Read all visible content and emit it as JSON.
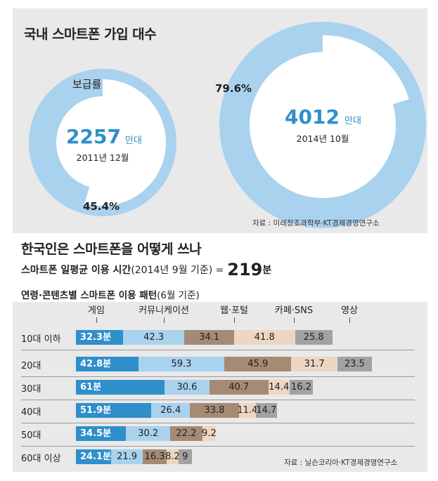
{
  "section1": {
    "title": "국내 스마트폰 가입 대수",
    "donut_small": {
      "label": "보급률",
      "number": "2257",
      "unit": "만대",
      "date": "2011년 12월",
      "pct_label": "45.4%",
      "pct": 45.4
    },
    "donut_large": {
      "number": "4012",
      "unit": "만대",
      "date": "2014년 10월",
      "pct_label": "79.6%",
      "pct": 79.6
    },
    "source": "자료 : 미래창조과학부·KT경제경영연구소"
  },
  "section2": {
    "title": "한국인은 스마트폰을 어떻게 쓰나",
    "subtitle_prefix": "스마트폰 일평균 이용 시간",
    "subtitle_paren": "(2014년 9월 기준) =",
    "subtitle_value": "219",
    "subtitle_unit": "분",
    "chart_title": "연령·콘텐츠별 스마트폰 이용 패턴",
    "chart_title_paren": "(6월 기준)",
    "source": "자료 : 닐슨코리아·KT경제경영연구소"
  },
  "colors": {
    "donut_fill": "#a9d2ee",
    "donut_center": "#ffffff",
    "number_blue": "#2f8fca",
    "seg_game": "#2f8fca",
    "seg_comm": "#a9d2ee",
    "seg_web": "#a68a74",
    "seg_cafe": "#edd6c3",
    "seg_video": "#a2a2a2"
  },
  "chart_data": {
    "type": "bar",
    "stacked": true,
    "orientation": "horizontal",
    "title": "연령·콘텐츠별 스마트폰 이용 패턴(6월 기준)",
    "unit": "분",
    "categories": [
      "10대 이하",
      "20대",
      "30대",
      "40대",
      "50대",
      "60대 이상"
    ],
    "series": [
      {
        "name": "게임",
        "values": [
          32.3,
          42.8,
          61,
          51.9,
          34.5,
          24.1
        ],
        "labels": [
          "32.3분",
          "42.8분",
          "61분",
          "51.9분",
          "34.5분",
          "24.1분"
        ]
      },
      {
        "name": "커뮤니케이션",
        "values": [
          42.3,
          59.3,
          30.6,
          26.4,
          30.2,
          21.9
        ],
        "labels": [
          "42.3",
          "59.3",
          "30.6",
          "26.4",
          "30.2",
          "21.9"
        ]
      },
      {
        "name": "웹·포털",
        "values": [
          34.1,
          45.9,
          40.7,
          33.8,
          22.2,
          16.3
        ],
        "labels": [
          "34.1",
          "45.9",
          "40.7",
          "33.8",
          "22.2",
          "16.3"
        ]
      },
      {
        "name": "카페·SNS",
        "values": [
          41.8,
          31.7,
          14.4,
          11.4,
          9.2,
          8.2
        ],
        "labels": [
          "41.8",
          "31.7",
          "14.4",
          "11.4",
          "9.2",
          "8.2"
        ]
      },
      {
        "name": "영상",
        "values": [
          25.8,
          23.5,
          16.2,
          14.7,
          0,
          9
        ],
        "labels": [
          "25.8",
          "23.5",
          "16.2",
          "14.7",
          "",
          "9"
        ]
      }
    ]
  }
}
